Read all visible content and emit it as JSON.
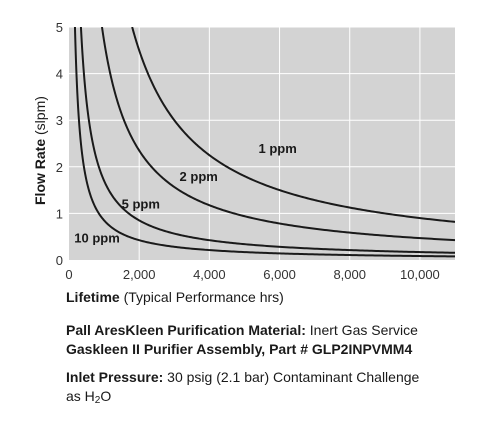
{
  "chart_data": {
    "type": "line",
    "xlabel_bold": "Lifetime",
    "xlabel_rest": " (Typical Performance hrs)",
    "ylabel_bold": "Flow Rate",
    "ylabel_rest": " (slpm)",
    "xlim": [
      0,
      11000
    ],
    "ylim": [
      0,
      5
    ],
    "xticks": [
      "0",
      "2,000",
      "4,000",
      "6,000",
      "8,000",
      "10,000"
    ],
    "xtick_values": [
      0,
      2000,
      4000,
      6000,
      8000,
      10000
    ],
    "yticks": [
      "0",
      "1",
      "2",
      "3",
      "4",
      "5"
    ],
    "ytick_values": [
      0,
      1,
      2,
      3,
      4,
      5
    ],
    "grid": true,
    "background": "#d3d3d3",
    "line_color": "#1a1a1a",
    "series": [
      {
        "name": "1 ppm",
        "k": 9000,
        "x": [
          1800,
          2000,
          3000,
          4000,
          5000,
          6000,
          8000,
          10000,
          11000
        ],
        "values": [
          5.0,
          4.5,
          3.0,
          2.25,
          1.8,
          1.5,
          1.13,
          0.9,
          0.82
        ]
      },
      {
        "name": "2 ppm",
        "k": 4700,
        "x": [
          940,
          1000,
          2000,
          3000,
          4000,
          6000,
          8000,
          10000,
          11000
        ],
        "values": [
          5.0,
          4.7,
          2.35,
          1.57,
          1.18,
          0.78,
          0.59,
          0.47,
          0.43
        ]
      },
      {
        "name": "5 ppm",
        "k": 1700,
        "x": [
          340,
          500,
          1000,
          2000,
          3000,
          4000,
          6000,
          8000,
          11000
        ],
        "values": [
          5.0,
          3.4,
          1.7,
          0.85,
          0.57,
          0.43,
          0.28,
          0.21,
          0.15
        ]
      },
      {
        "name": "10 ppm",
        "k": 850,
        "x": [
          170,
          500,
          1000,
          1500,
          2000,
          3000,
          4000,
          6000,
          11000
        ],
        "values": [
          5.0,
          1.7,
          0.85,
          0.57,
          0.43,
          0.28,
          0.21,
          0.14,
          0.08
        ]
      }
    ]
  },
  "caption": {
    "line1_bold": "Pall AresKleen Purification Material:",
    "line1_rest": " Inert Gas Service",
    "line2": "Gaskleen II Purifier Assembly, Part # GLP2INPVMM4",
    "line3_bold": "Inlet Pressure:",
    "line3_rest": " 30 psig (2.1 bar) Contaminant Challenge",
    "line4_prefix": "as H",
    "line4_sub": "2",
    "line4_suffix": "O"
  }
}
